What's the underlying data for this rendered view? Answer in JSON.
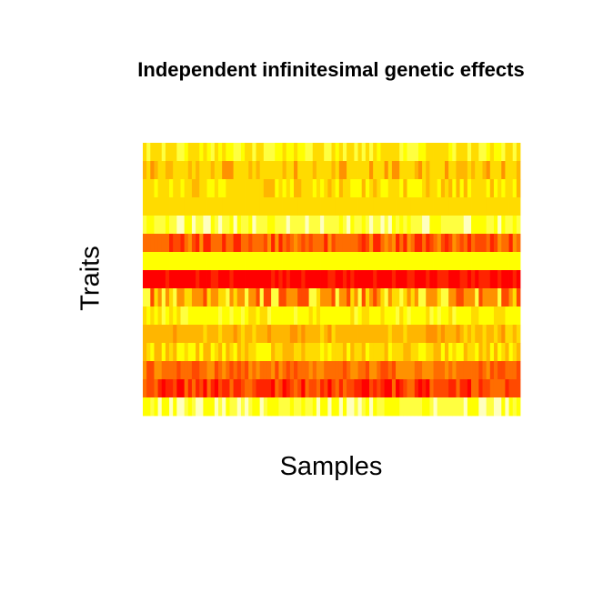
{
  "chart_data": {
    "type": "heatmap",
    "title": "Independent infinitesimal genetic effects",
    "xlabel": "Samples",
    "ylabel": "Traits",
    "colormap": "heat",
    "n_samples": 100,
    "n_traits": 15,
    "palette": [
      "#FF0000",
      "#FF2400",
      "#FF4900",
      "#FF6D00",
      "#FF9200",
      "#FFB600",
      "#FFDB00",
      "#FFFF00",
      "#FFFF40",
      "#FFFFBF"
    ],
    "rows": [
      {
        "trait_index": 1,
        "base": 6,
        "mix": [
          7,
          8
        ],
        "noise": 0.55
      },
      {
        "trait_index": 2,
        "base": 6,
        "mix": [
          5,
          4
        ],
        "noise": 0.35
      },
      {
        "trait_index": 3,
        "base": 6,
        "mix": [
          7,
          5
        ],
        "noise": 0.55
      },
      {
        "trait_index": 4,
        "base": 6,
        "mix": [
          6
        ],
        "noise": 0.05
      },
      {
        "trait_index": 5,
        "base": 8,
        "mix": [
          9,
          7
        ],
        "noise": 0.5
      },
      {
        "trait_index": 6,
        "base": 3,
        "mix": [
          1,
          2,
          4
        ],
        "noise": 0.5
      },
      {
        "trait_index": 7,
        "base": 7,
        "mix": [
          7
        ],
        "noise": 0.05
      },
      {
        "trait_index": 8,
        "base": 0,
        "mix": [
          1
        ],
        "noise": 0.35
      },
      {
        "trait_index": 9,
        "base": 4,
        "mix": [
          2,
          6,
          8
        ],
        "noise": 0.55
      },
      {
        "trait_index": 10,
        "base": 7,
        "mix": [
          8,
          6
        ],
        "noise": 0.3
      },
      {
        "trait_index": 11,
        "base": 5,
        "mix": [
          4,
          6
        ],
        "noise": 0.35
      },
      {
        "trait_index": 12,
        "base": 6,
        "mix": [
          5,
          7
        ],
        "noise": 0.55
      },
      {
        "trait_index": 13,
        "base": 3,
        "mix": [
          4,
          2
        ],
        "noise": 0.55
      },
      {
        "trait_index": 14,
        "base": 1,
        "mix": [
          0,
          2,
          3
        ],
        "noise": 0.7
      },
      {
        "trait_index": 15,
        "base": 8,
        "mix": [
          9,
          7
        ],
        "noise": 0.6
      }
    ]
  }
}
